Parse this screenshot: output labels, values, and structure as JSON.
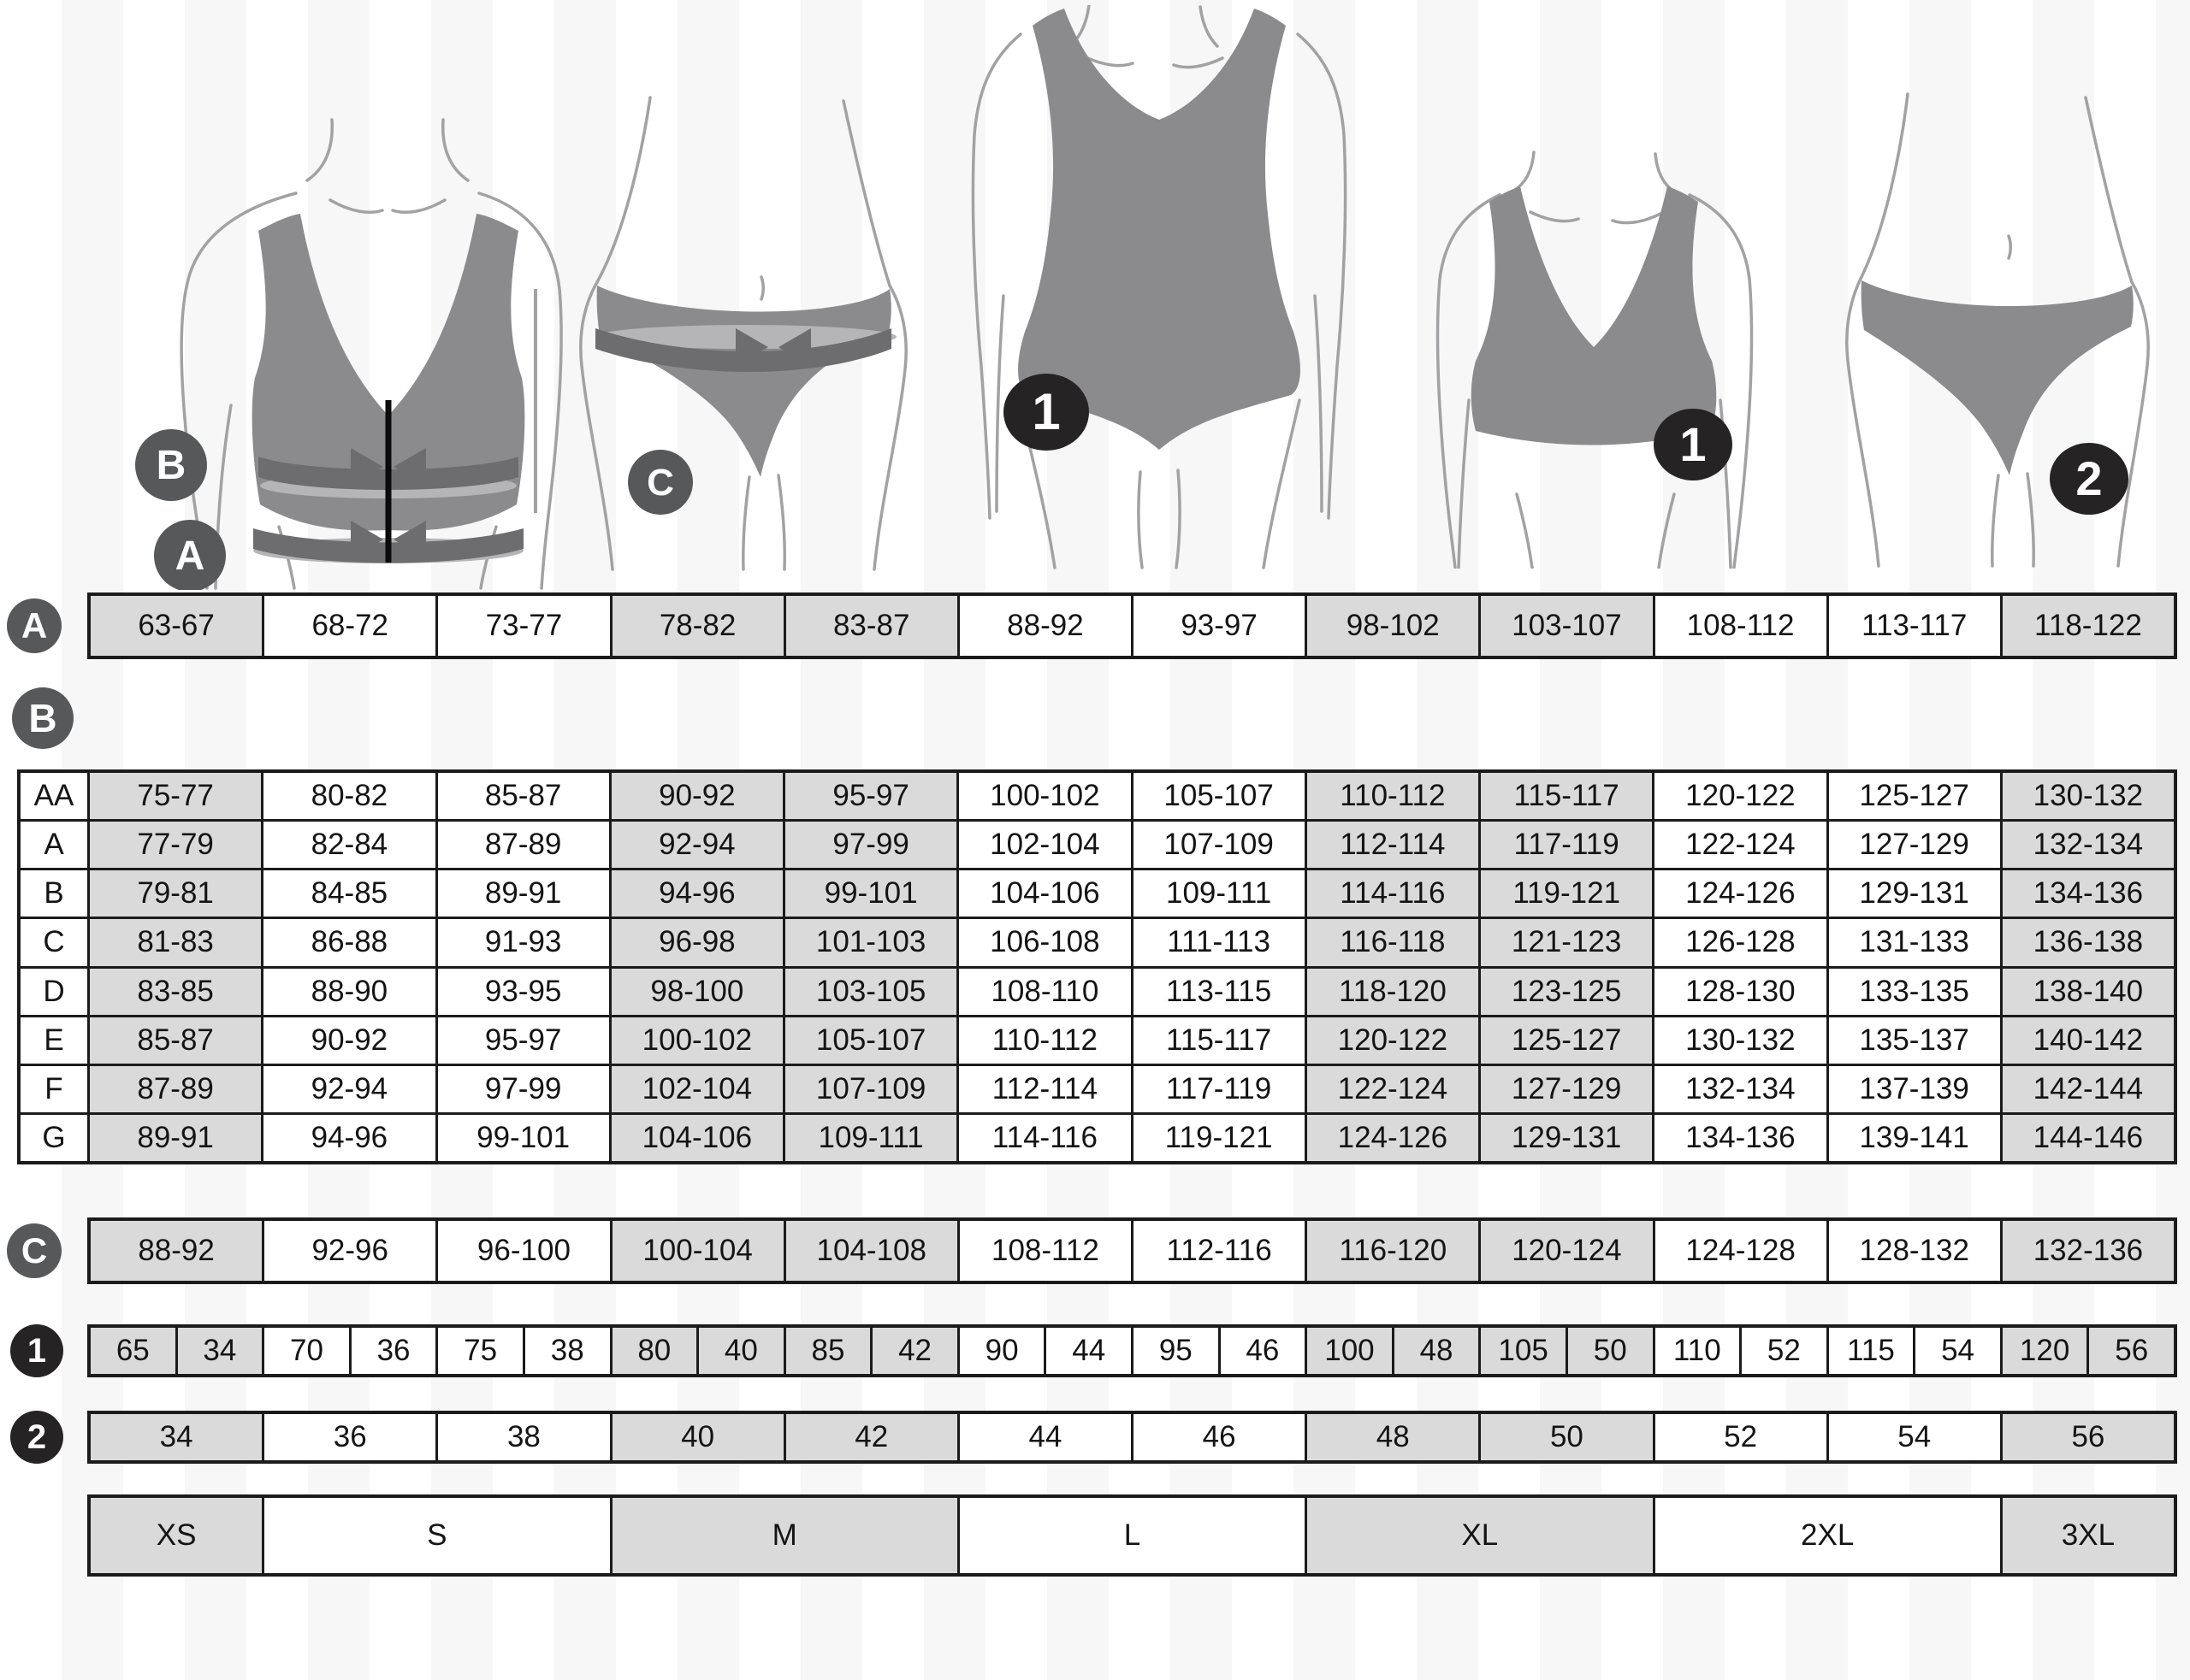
{
  "figures": {
    "bra_measure": {
      "marker_b": "B",
      "marker_a": "A"
    },
    "panty_measure": {
      "marker_c": "C"
    },
    "swimsuit_fit": {
      "badge": "1"
    },
    "bra_fit": {
      "badge": "1"
    },
    "panty_fit": {
      "badge": "2"
    }
  },
  "rows": {
    "a": {
      "label": "A",
      "cells": [
        "63-67",
        "68-72",
        "73-77",
        "78-82",
        "83-87",
        "88-92",
        "93-97",
        "98-102",
        "103-107",
        "108-112",
        "113-117",
        "118-122"
      ]
    },
    "b": {
      "label": "B",
      "rows": [
        {
          "cup": "AA",
          "cells": [
            "75-77",
            "80-82",
            "85-87",
            "90-92",
            "95-97",
            "100-102",
            "105-107",
            "110-112",
            "115-117",
            "120-122",
            "125-127",
            "130-132"
          ]
        },
        {
          "cup": "A",
          "cells": [
            "77-79",
            "82-84",
            "87-89",
            "92-94",
            "97-99",
            "102-104",
            "107-109",
            "112-114",
            "117-119",
            "122-124",
            "127-129",
            "132-134"
          ]
        },
        {
          "cup": "B",
          "cells": [
            "79-81",
            "84-85",
            "89-91",
            "94-96",
            "99-101",
            "104-106",
            "109-111",
            "114-116",
            "119-121",
            "124-126",
            "129-131",
            "134-136"
          ]
        },
        {
          "cup": "C",
          "cells": [
            "81-83",
            "86-88",
            "91-93",
            "96-98",
            "101-103",
            "106-108",
            "111-113",
            "116-118",
            "121-123",
            "126-128",
            "131-133",
            "136-138"
          ]
        },
        {
          "cup": "D",
          "cells": [
            "83-85",
            "88-90",
            "93-95",
            "98-100",
            "103-105",
            "108-110",
            "113-115",
            "118-120",
            "123-125",
            "128-130",
            "133-135",
            "138-140"
          ]
        },
        {
          "cup": "E",
          "cells": [
            "85-87",
            "90-92",
            "95-97",
            "100-102",
            "105-107",
            "110-112",
            "115-117",
            "120-122",
            "125-127",
            "130-132",
            "135-137",
            "140-142"
          ]
        },
        {
          "cup": "F",
          "cells": [
            "87-89",
            "92-94",
            "97-99",
            "102-104",
            "107-109",
            "112-114",
            "117-119",
            "122-124",
            "127-129",
            "132-134",
            "137-139",
            "142-144"
          ]
        },
        {
          "cup": "G",
          "cells": [
            "89-91",
            "94-96",
            "99-101",
            "104-106",
            "109-111",
            "114-116",
            "119-121",
            "124-126",
            "129-131",
            "134-136",
            "139-141",
            "144-146"
          ]
        }
      ]
    },
    "c": {
      "label": "C",
      "cells": [
        "88-92",
        "92-96",
        "96-100",
        "100-104",
        "104-108",
        "108-112",
        "112-116",
        "116-120",
        "120-124",
        "124-128",
        "128-132",
        "132-136"
      ]
    },
    "one": {
      "label": "1",
      "cells": [
        "65",
        "34",
        "70",
        "36",
        "75",
        "38",
        "80",
        "40",
        "85",
        "42",
        "90",
        "44",
        "95",
        "46",
        "100",
        "48",
        "105",
        "50",
        "110",
        "52",
        "115",
        "54",
        "120",
        "56"
      ]
    },
    "two": {
      "label": "2",
      "cells": [
        "34",
        "36",
        "38",
        "40",
        "42",
        "44",
        "46",
        "48",
        "50",
        "52",
        "54",
        "56"
      ]
    },
    "sizes": {
      "cells": [
        "XS",
        "S",
        "M",
        "L",
        "XL",
        "2XL",
        "3XL"
      ]
    }
  },
  "colors": {
    "cell_shaded": "#dadada",
    "marker_circle": "#57585a",
    "badge_dark": "#262325",
    "garment": "#8b8b8d",
    "measuring_band": "#6d6d70",
    "tape_highlight": "#b5b5b7"
  }
}
